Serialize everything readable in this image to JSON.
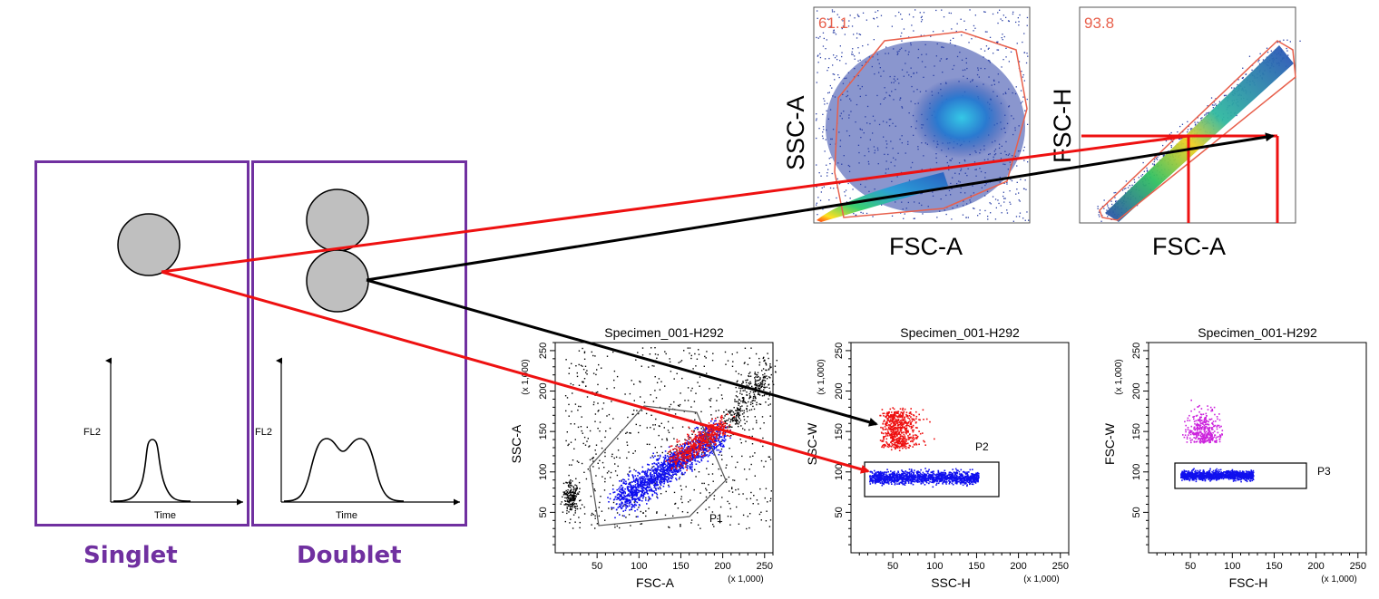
{
  "cells": {
    "singlet_label": "Singlet",
    "doublet_label": "Doublet",
    "pulse_y_label": "FL2",
    "pulse_x_label": "Time"
  },
  "top_plots": [
    {
      "percent": "61.1",
      "x_label": "FSC-A",
      "y_label": "SSC-A"
    },
    {
      "percent": "93.8",
      "x_label": "FSC-A",
      "y_label": "FSC-H"
    }
  ],
  "bottom_plots": [
    {
      "title": "Specimen_001-H292",
      "x_label": "FSC-A",
      "y_label": "SSC-A",
      "y_scale": "(x 1,000)",
      "x_scale": "(x 1,000)",
      "gate": "P1",
      "x_ticks": [
        "50",
        "100",
        "150",
        "200",
        "250"
      ],
      "y_ticks": [
        "50",
        "100",
        "150",
        "200",
        "250"
      ]
    },
    {
      "title": "Specimen_001-H292",
      "x_label": "SSC-H",
      "y_label": "SSC-W",
      "y_scale": "(x 1,000)",
      "x_scale": "(x 1,000)",
      "gate": "P2",
      "x_ticks": [
        "50",
        "100",
        "150",
        "200",
        "250"
      ],
      "y_ticks": [
        "50",
        "100",
        "150",
        "200",
        "250"
      ]
    },
    {
      "title": "Specimen_001-H292",
      "x_label": "FSC-H",
      "y_label": "FSC-W",
      "y_scale": "(x 1,000)",
      "x_scale": "(x 1,000)",
      "gate": "P3",
      "x_ticks": [
        "50",
        "100",
        "150",
        "200",
        "250"
      ],
      "y_ticks": [
        "50",
        "100",
        "150",
        "200",
        "250"
      ]
    }
  ],
  "colors": {
    "frame": "#7030a0",
    "cell_fill": "#bfbfbf",
    "gate_line": "#e8604c",
    "arrow_red": "#ee1111",
    "arrow_black": "#000000",
    "dots_blue": "#1010ee",
    "dots_red": "#ee1010",
    "dots_magenta": "#cc22dd"
  }
}
